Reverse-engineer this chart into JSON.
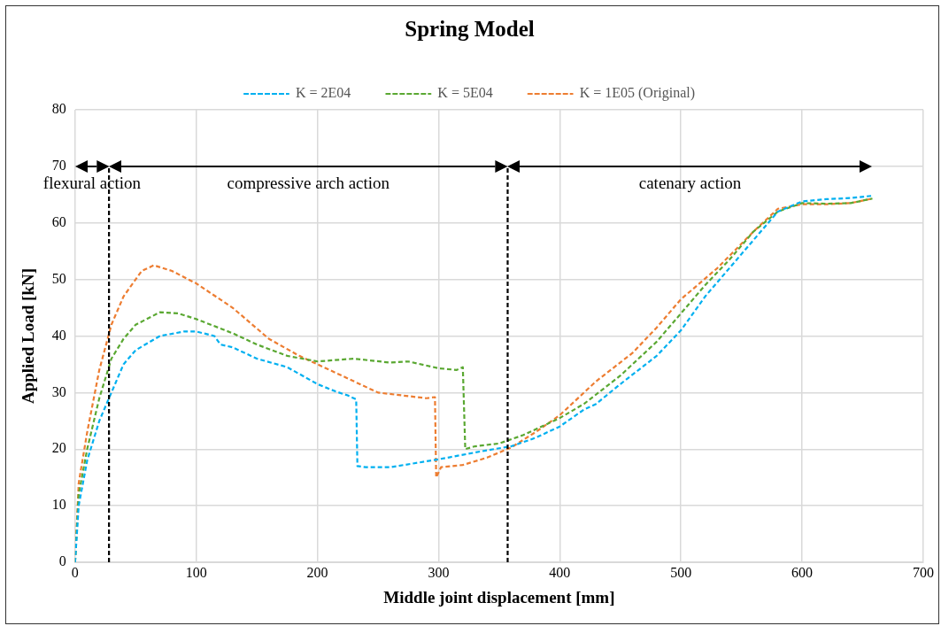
{
  "chart_data": {
    "type": "line",
    "title": "Spring Model",
    "xlabel": "Middle joint displacement [mm]",
    "ylabel": "Applied Load [kN]",
    "xlim": [
      0,
      700
    ],
    "xticks": [
      0,
      100,
      200,
      300,
      400,
      500,
      600,
      700
    ],
    "ylim": [
      0,
      80
    ],
    "yticks": [
      0,
      10,
      20,
      30,
      40,
      50,
      60,
      70,
      80
    ],
    "grid": true,
    "legend": "top",
    "line_style": "dashed",
    "marker": "none",
    "series": [
      {
        "name": "K = 2E04",
        "color": "#00b0f0",
        "x": [
          0,
          3,
          10,
          20,
          30,
          40,
          50,
          70,
          90,
          100,
          115,
          120,
          130,
          150,
          175,
          200,
          215,
          225,
          232,
          233,
          240,
          260,
          280,
          300,
          320,
          340,
          360,
          380,
          400,
          420,
          430,
          450,
          480,
          500,
          520,
          540,
          560,
          580,
          600,
          620,
          640,
          658
        ],
        "values": [
          0,
          10,
          18,
          25,
          30,
          35,
          37.5,
          40,
          40.8,
          40.8,
          40,
          38.5,
          38,
          36,
          34.5,
          31.5,
          30.2,
          29.5,
          28.8,
          17,
          16.8,
          16.8,
          17.5,
          18.2,
          19,
          19.8,
          20.5,
          22,
          24,
          27,
          28,
          31.5,
          36.5,
          41,
          47,
          52,
          57,
          62,
          63.8,
          64.2,
          64.4,
          64.8
        ]
      },
      {
        "name": "K = 5E04",
        "color": "#5aa832",
        "x": [
          0,
          3,
          10,
          20,
          30,
          40,
          50,
          70,
          85,
          100,
          130,
          150,
          175,
          200,
          230,
          260,
          275,
          300,
          315,
          320,
          322,
          330,
          350,
          370,
          400,
          420,
          450,
          480,
          500,
          520,
          540,
          560,
          580,
          600,
          620,
          640,
          658
        ],
        "values": [
          0,
          12,
          20,
          29,
          36,
          39.5,
          42,
          44.2,
          44,
          43,
          40.5,
          38.5,
          36.5,
          35.5,
          36,
          35.3,
          35.5,
          34.3,
          34,
          34.5,
          20,
          20.5,
          21,
          22.5,
          25.5,
          28,
          33,
          39,
          44,
          49,
          53.5,
          58.5,
          62,
          63.5,
          63.4,
          63.5,
          64.3
        ]
      },
      {
        "name": "K = 1E05 (Original)",
        "color": "#ed7d31",
        "x": [
          0,
          3,
          10,
          20,
          30,
          40,
          55,
          65,
          80,
          100,
          130,
          160,
          185,
          200,
          230,
          250,
          270,
          290,
          297,
          298,
          302,
          320,
          340,
          360,
          380,
          400,
          430,
          460,
          480,
          500,
          530,
          560,
          580,
          600,
          620,
          640,
          658
        ],
        "values": [
          0,
          14,
          23,
          34,
          42,
          47,
          51.5,
          52.5,
          51.5,
          49.3,
          45,
          39.5,
          36.5,
          35,
          32,
          30,
          29.5,
          29,
          29.2,
          15,
          16.8,
          17.2,
          18.5,
          20.3,
          23,
          26,
          32,
          37,
          41.5,
          46.5,
          52,
          58.5,
          62.5,
          63.3,
          63.3,
          63.5,
          64.3
        ]
      }
    ],
    "ref_lines": [
      {
        "axis": "x",
        "value": 28,
        "color": "#000000",
        "line_style": "dashed"
      },
      {
        "axis": "x",
        "value": 357,
        "color": "#000000",
        "line_style": "dashed"
      }
    ],
    "annotations": [
      "flexural action",
      "compressive arch action",
      "catenary action"
    ]
  }
}
